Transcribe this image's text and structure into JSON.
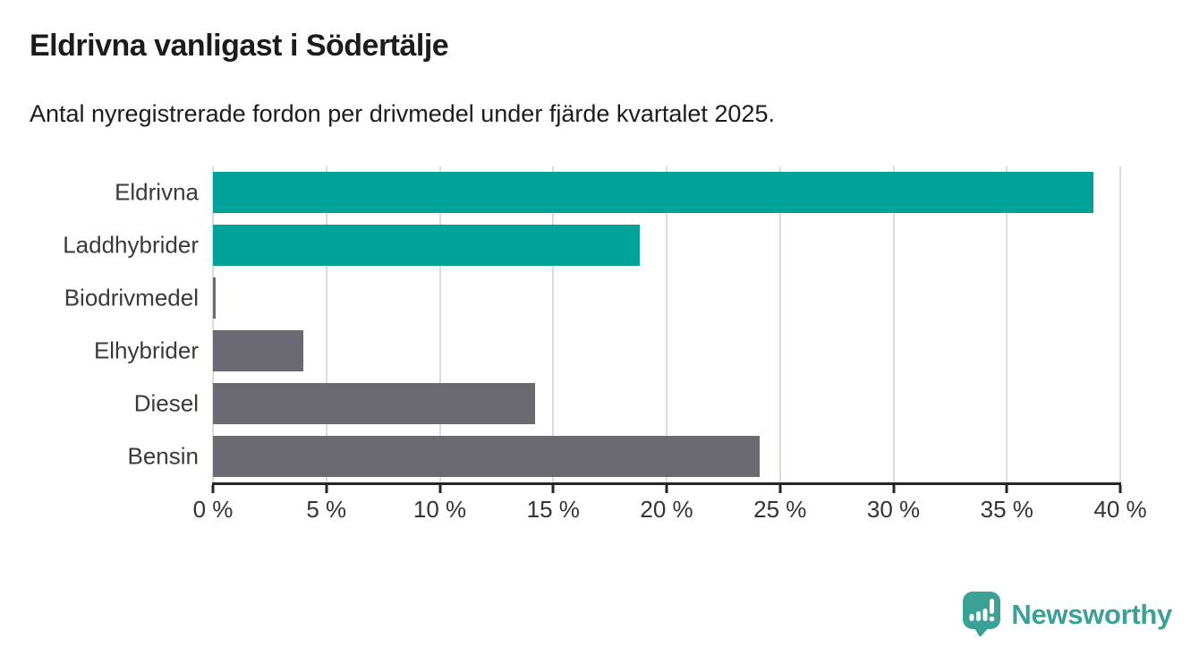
{
  "header": {
    "title": "Eldrivna vanligast i Södertälje",
    "subtitle": "Antal nyregistrerade fordon per drivmedel under fjärde kvartalet 2025."
  },
  "chart_data": {
    "type": "bar",
    "orientation": "horizontal",
    "title": "Eldrivna vanligast i Södertälje",
    "subtitle": "Antal nyregistrerade fordon per drivmedel under fjärde kvartalet 2025.",
    "categories": [
      "Eldrivna",
      "Laddhybrider",
      "Biodrivmedel",
      "Elhybrider",
      "Diesel",
      "Bensin"
    ],
    "values": [
      38.8,
      18.8,
      0.1,
      4.0,
      14.2,
      24.1
    ],
    "unit": "%",
    "bar_colors": [
      "#00a29a",
      "#00a29a",
      "#6b6a72",
      "#6b6a72",
      "#6b6a72",
      "#6b6a72"
    ],
    "xlim": [
      0,
      40
    ],
    "x_tick_values": [
      0,
      5,
      10,
      15,
      20,
      25,
      30,
      35,
      40
    ],
    "x_tick_labels": [
      "0 %",
      "5 %",
      "10 %",
      "15 %",
      "20 %",
      "25 %",
      "30 %",
      "35 %",
      "40 %"
    ],
    "grid": true,
    "legend": false
  },
  "colors": {
    "accent_teal": "#00a29a",
    "neutral_gray": "#6b6a72",
    "gridline": "#dcdcdc",
    "axis": "#262626",
    "text_dark": "#1c1c1c",
    "label_gray": "#3a3a3a",
    "logo_teal": "#3ba197"
  },
  "logo": {
    "text": "Newsworthy",
    "icon": "newsworthy-bar-chart-speech-bubble-icon"
  }
}
